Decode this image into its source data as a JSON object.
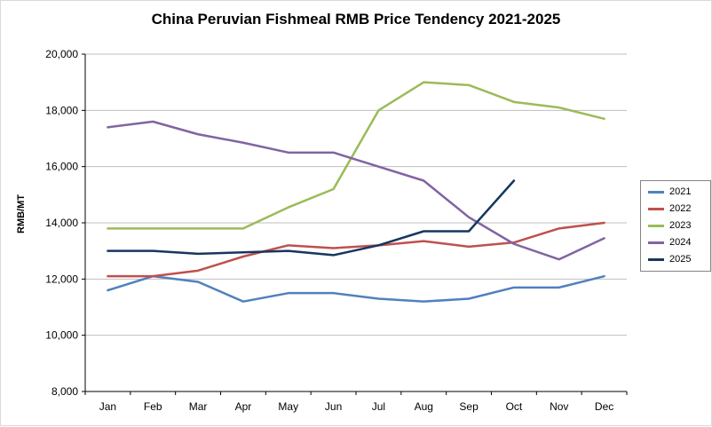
{
  "chart_data": {
    "type": "line",
    "title": "China Peruvian Fishmeal RMB Price Tendency 2021-2025",
    "xlabel": "",
    "ylabel": "RMB/MT",
    "categories": [
      "Jan",
      "Feb",
      "Mar",
      "Apr",
      "May",
      "Jun",
      "Jul",
      "Aug",
      "Sep",
      "Oct",
      "Nov",
      "Dec"
    ],
    "ylim": [
      8000,
      20000
    ],
    "ytick_step": 2000,
    "grid": true,
    "legend_position": "right",
    "series": [
      {
        "name": "2021",
        "color": "#4F81BD",
        "values": [
          11600,
          12100,
          11900,
          11200,
          11500,
          11500,
          11300,
          11200,
          11300,
          11700,
          11700,
          12100
        ]
      },
      {
        "name": "2022",
        "color": "#C0504D",
        "values": [
          12100,
          12100,
          12300,
          12800,
          13200,
          13100,
          13200,
          13350,
          13150,
          13300,
          13800,
          14000
        ]
      },
      {
        "name": "2023",
        "color": "#9BBB59",
        "values": [
          13800,
          13800,
          13800,
          13800,
          14550,
          15200,
          18000,
          19000,
          18900,
          18300,
          18100,
          17700
        ]
      },
      {
        "name": "2024",
        "color": "#8064A2",
        "values": [
          17400,
          17600,
          17150,
          16850,
          16500,
          16500,
          16000,
          15500,
          14200,
          13250,
          12700,
          13450
        ]
      },
      {
        "name": "2025",
        "color": "#17365D",
        "values": [
          13000,
          13000,
          12900,
          12950,
          13000,
          12850,
          13200,
          13700,
          13700,
          15500,
          null,
          null
        ]
      }
    ]
  }
}
